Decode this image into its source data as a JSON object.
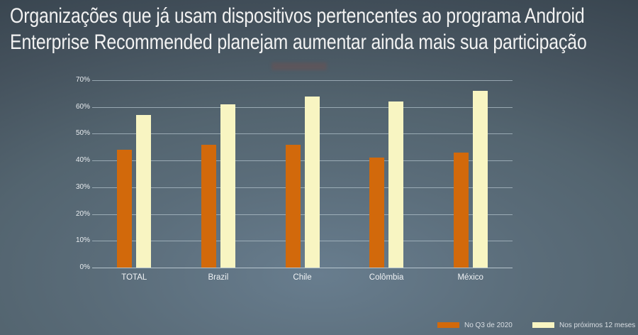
{
  "title": "Organizações que já usam dispositivos pertencentes ao programa Android Enterprise Recommended planejam aumentar ainda mais sua participação",
  "chart_data": {
    "type": "bar",
    "categories": [
      "TOTAL",
      "Brazil",
      "Chile",
      "Colômbia",
      "México"
    ],
    "series": [
      {
        "name": "No Q3 de 2020",
        "color": "#d2690b",
        "values": [
          44,
          46,
          46,
          41,
          43
        ]
      },
      {
        "name": "Nos próximos 12 meses",
        "color": "#f8f5c2",
        "values": [
          57,
          61,
          64,
          62,
          66
        ]
      }
    ],
    "title": "",
    "xlabel": "",
    "ylabel": "",
    "ylim": [
      0,
      70
    ],
    "ytick_step": 10,
    "ytick_labels": [
      "0%",
      "10%",
      "20%",
      "30%",
      "40%",
      "50%",
      "60%",
      "70%"
    ],
    "grid": true,
    "legend_position": "bottom-right"
  },
  "colors": {
    "background_center": "#687d8e",
    "background_edge": "#333f49",
    "title_text": "#f2f2f2",
    "gridline": "#93a2ac",
    "axis_text": "#e8ecef",
    "category_text": "#f0f3f5",
    "legend_text": "#d9dee3",
    "series1": "#d2690b",
    "series2": "#f8f5c2"
  }
}
